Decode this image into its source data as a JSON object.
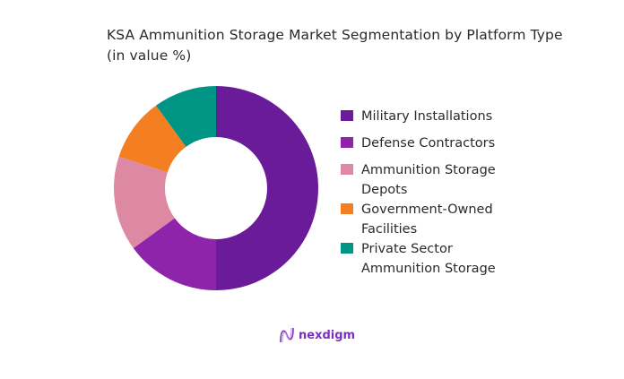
{
  "title": "KSA Ammunition Storage Market Segmentation by Platform Type (in value %)",
  "logo": {
    "text": "nexdigm",
    "icon": "nexdigm-wave-icon",
    "color": "#7b2fbf"
  },
  "chart_data": {
    "type": "pie",
    "subtype": "donut",
    "title": "KSA Ammunition Storage Market Segmentation by Platform Type (in value %)",
    "categories": [
      "Military Installations",
      "Defense Contractors",
      "Ammunition Storage Depots",
      "Government-Owned Facilities",
      "Private Sector Ammunition Storage"
    ],
    "values": [
      50,
      15,
      15,
      10,
      10
    ],
    "colors": [
      "#6a1b9a",
      "#8e24aa",
      "#de89a4",
      "#f47f22",
      "#009485"
    ],
    "legend_position": "right",
    "start_angle": "12 o'clock, clockwise"
  },
  "legend": [
    {
      "label": "Military Installations",
      "color": "#6a1b9a"
    },
    {
      "label": "Defense Contractors",
      "color": "#8e24aa"
    },
    {
      "label": "Ammunition Storage Depots",
      "color": "#de89a4"
    },
    {
      "label": "Government-Owned Facilities",
      "color": "#f47f22"
    },
    {
      "label": "Private Sector Ammunition Storage",
      "color": "#009485"
    }
  ]
}
